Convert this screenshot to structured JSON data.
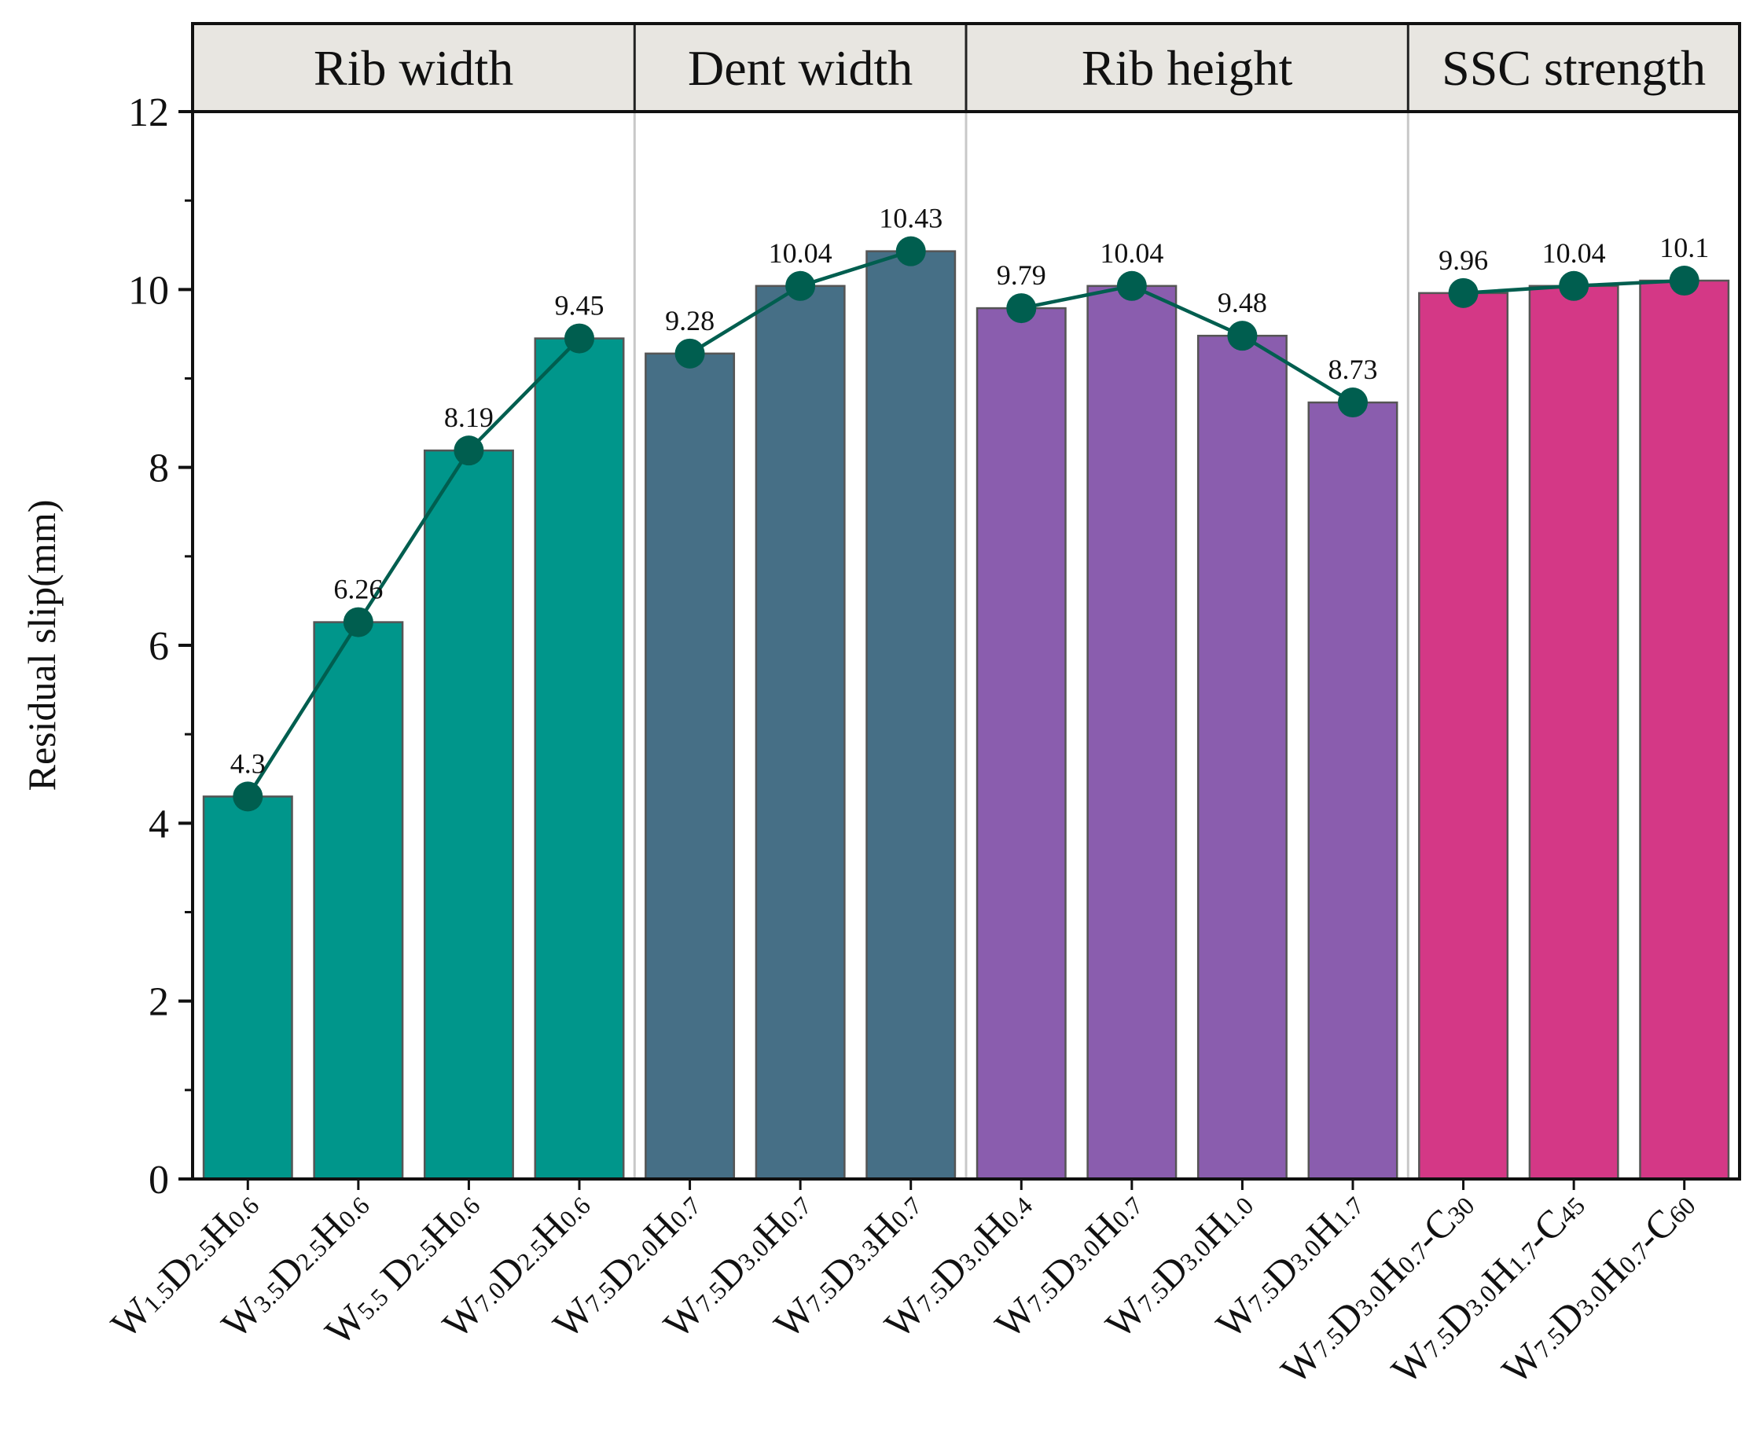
{
  "chart_data": {
    "type": "bar",
    "title": "",
    "xlabel": "",
    "ylabel": "Residual slip(mm)",
    "ylim": [
      0,
      12
    ],
    "yticks": [
      0,
      2,
      4,
      6,
      8,
      10,
      12
    ],
    "grid": false,
    "categories": [
      "W1.5D2.5H0.6",
      "W3.5D2.5H0.6",
      "W5.5 D2.5H0.6",
      "W7.0D2.5H0.6",
      "W7.5D2.0H0.7",
      "W7.5D3.0H0.7",
      "W7.5D3.3H0.7",
      "W7.5D3.0H0.4",
      "W7.5D3.0H0.7",
      "W7.5D3.0H1.0",
      "W7.5D3.0H1.7",
      "W7.5D3.0H0.7-C30",
      "W7.5D3.0H1.7-C45",
      "W7.5D3.0H0.7-C60"
    ],
    "category_parts": [
      [
        [
          "W",
          ""
        ],
        [
          "1.5",
          "sub"
        ],
        [
          "D",
          ""
        ],
        [
          "2.5",
          "sub"
        ],
        [
          "H",
          ""
        ],
        [
          "0.6",
          "sub"
        ]
      ],
      [
        [
          "W",
          ""
        ],
        [
          "3.5",
          "sub"
        ],
        [
          "D",
          ""
        ],
        [
          "2.5",
          "sub"
        ],
        [
          "H",
          ""
        ],
        [
          "0.6",
          "sub"
        ]
      ],
      [
        [
          "W",
          ""
        ],
        [
          "5.5",
          "sub"
        ],
        [
          " D",
          ""
        ],
        [
          "2.5",
          "sub"
        ],
        [
          "H",
          ""
        ],
        [
          "0.6",
          "sub"
        ]
      ],
      [
        [
          "W",
          ""
        ],
        [
          "7.0",
          "sub"
        ],
        [
          "D",
          ""
        ],
        [
          "2.5",
          "sub"
        ],
        [
          "H",
          ""
        ],
        [
          "0.6",
          "sub"
        ]
      ],
      [
        [
          "W",
          ""
        ],
        [
          "7.5",
          "sub"
        ],
        [
          "D",
          ""
        ],
        [
          "2.0",
          "sub"
        ],
        [
          "H",
          ""
        ],
        [
          "0.7",
          "sub"
        ]
      ],
      [
        [
          "W",
          ""
        ],
        [
          "7.5",
          "sub"
        ],
        [
          "D",
          ""
        ],
        [
          "3.0",
          "sub"
        ],
        [
          "H",
          ""
        ],
        [
          "0.7",
          "sub"
        ]
      ],
      [
        [
          "W",
          ""
        ],
        [
          "7.5",
          "sub"
        ],
        [
          "D",
          ""
        ],
        [
          "3.3",
          "sub"
        ],
        [
          "H",
          ""
        ],
        [
          "0.7",
          "sub"
        ]
      ],
      [
        [
          "W",
          ""
        ],
        [
          "7.5",
          "sub"
        ],
        [
          "D",
          ""
        ],
        [
          "3.0",
          "sub"
        ],
        [
          "H",
          ""
        ],
        [
          "0.4",
          "sub"
        ]
      ],
      [
        [
          "W",
          ""
        ],
        [
          "7.5",
          "sub"
        ],
        [
          "D",
          ""
        ],
        [
          "3.0",
          "sub"
        ],
        [
          "H",
          ""
        ],
        [
          "0.7",
          "sub"
        ]
      ],
      [
        [
          "W",
          ""
        ],
        [
          "7.5",
          "sub"
        ],
        [
          "D",
          ""
        ],
        [
          "3.0",
          "sub"
        ],
        [
          "H",
          ""
        ],
        [
          "1.0",
          "sub"
        ]
      ],
      [
        [
          "W",
          ""
        ],
        [
          "7.5",
          "sub"
        ],
        [
          "D",
          ""
        ],
        [
          "3.0",
          "sub"
        ],
        [
          "H",
          ""
        ],
        [
          "1.7",
          "sub"
        ]
      ],
      [
        [
          "W",
          ""
        ],
        [
          "7.5",
          "sub"
        ],
        [
          "D",
          ""
        ],
        [
          "3.0",
          "sub"
        ],
        [
          "H",
          ""
        ],
        [
          "0.7",
          "sub"
        ],
        [
          "-C",
          ""
        ],
        [
          "30",
          "sub"
        ]
      ],
      [
        [
          "W",
          ""
        ],
        [
          "7.5",
          "sub"
        ],
        [
          "D",
          ""
        ],
        [
          "3.0",
          "sub"
        ],
        [
          "H",
          ""
        ],
        [
          "1.7",
          "sub"
        ],
        [
          "-C",
          ""
        ],
        [
          "45",
          "sub"
        ]
      ],
      [
        [
          "W",
          ""
        ],
        [
          "7.5",
          "sub"
        ],
        [
          "D",
          ""
        ],
        [
          "3.0",
          "sub"
        ],
        [
          "H",
          ""
        ],
        [
          "0.7",
          "sub"
        ],
        [
          "-C",
          ""
        ],
        [
          "60",
          "sub"
        ]
      ]
    ],
    "series": [
      {
        "name": "Residual slip",
        "values": [
          4.3,
          6.26,
          8.19,
          9.45,
          9.28,
          10.04,
          10.43,
          9.79,
          10.04,
          9.48,
          8.73,
          9.96,
          10.04,
          10.1
        ],
        "value_labels": [
          "4.3",
          "6.26",
          "8.19",
          "9.45",
          "9.28",
          "10.04",
          "10.43",
          "9.79",
          "10.04",
          "9.48",
          "8.73",
          "9.96",
          "10.04",
          "10.1"
        ]
      }
    ],
    "groups": [
      {
        "label": "Rib width",
        "start": 0,
        "end": 3,
        "color": "#00968b"
      },
      {
        "label": "Dent width",
        "start": 4,
        "end": 6,
        "color": "#466f86"
      },
      {
        "label": "Rib height",
        "start": 7,
        "end": 10,
        "color": "#8a5dae"
      },
      {
        "label": "SSC strength",
        "start": 11,
        "end": 13,
        "color": "#d43886"
      }
    ],
    "line_color": "#005e4f",
    "bar_edge_color": "#555555",
    "header_fill": "#e8e6e1",
    "divider_color": "#c8c8c8"
  }
}
